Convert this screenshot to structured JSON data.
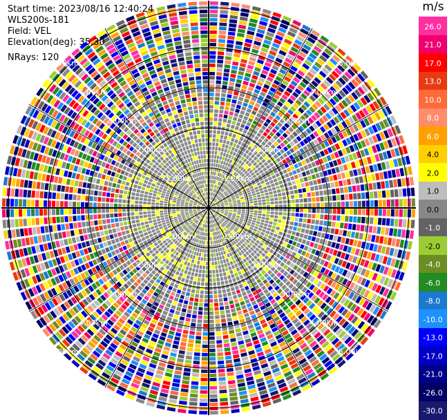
{
  "info": {
    "start_time": "Start time: 2023/08/16 12:40:24",
    "instrument": "WLS200s-181",
    "field": "Field: VEL",
    "elevation": "Elevation(deg): 35.30",
    "nrays": "NRays: 120"
  },
  "chart_data": {
    "type": "heatmap",
    "projection": "polar-ppi",
    "field": "VEL",
    "unit": "m/s",
    "n_rays": 120,
    "elevation_deg": 35.3,
    "range_ring_labels": [
      "1.00km",
      "2.00km",
      "3.00km",
      "4.00km",
      "5.00km"
    ],
    "color_scale": {
      "ticks": [
        "26.0",
        "21.0",
        "17.0",
        "13.0",
        "10.0",
        "8.0",
        "6.0",
        "4.0",
        "2.0",
        "1.0",
        "0.0",
        "-1.0",
        "-2.0",
        "-4.0",
        "-6.0",
        "-8.0",
        "-10.0",
        "-13.0",
        "-17.0",
        "-21.0",
        "-26.0",
        "-30.0"
      ],
      "colors": [
        "#ff2fa0",
        "#f0006e",
        "#ff0000",
        "#e83a10",
        "#ff6a3a",
        "#ff8c6c",
        "#ffa000",
        "#ffd000",
        "#ffff00",
        "#bdbdbd",
        "#888888",
        "#636363",
        "#9acd32",
        "#6b8e23",
        "#228b22",
        "#1a7ad0",
        "#1e90ff",
        "#0000ff",
        "#0000c8",
        "#00008b",
        "#000066",
        "#191970"
      ]
    },
    "grid": true
  }
}
